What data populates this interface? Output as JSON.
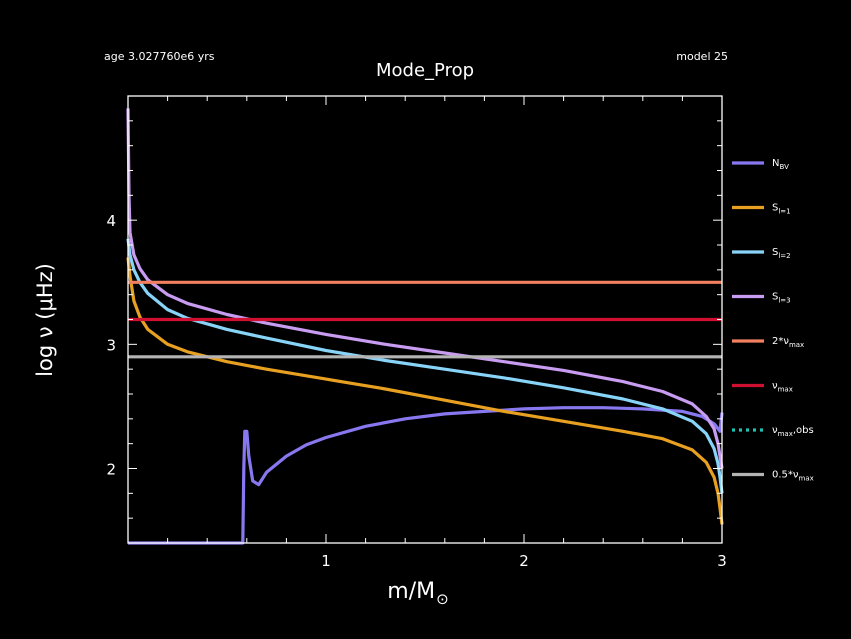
{
  "header": {
    "age": "age 3.027760e6 yrs",
    "title": "Mode_Prop",
    "model": "model 25"
  },
  "chart_data": {
    "type": "line",
    "title": "Mode_Prop",
    "xlabel": "m/M",
    "xlabel_symbol": "⊙",
    "ylabel": "log ν (μHz)",
    "xlim": [
      0,
      3
    ],
    "ylim": [
      1.4,
      5.0
    ],
    "xticks": [
      1,
      2,
      3
    ],
    "yticks": [
      2,
      3,
      4
    ],
    "grid": false,
    "legend_position": "right",
    "series": [
      {
        "name": "N_BV",
        "label": "N",
        "sub": "BV",
        "color": "#8878f0",
        "x": [
          0,
          0.58,
          0.585,
          0.59,
          0.6,
          0.61,
          0.63,
          0.66,
          0.7,
          0.8,
          0.9,
          1.0,
          1.2,
          1.4,
          1.6,
          1.8,
          2.0,
          2.2,
          2.4,
          2.6,
          2.8,
          2.9,
          2.96,
          2.99,
          3.0
        ],
        "y": [
          1.4,
          1.4,
          2.0,
          2.3,
          2.3,
          2.1,
          1.9,
          1.87,
          1.97,
          2.1,
          2.19,
          2.25,
          2.34,
          2.4,
          2.44,
          2.46,
          2.48,
          2.49,
          2.49,
          2.48,
          2.46,
          2.42,
          2.36,
          2.3,
          2.45
        ]
      },
      {
        "name": "S_l=1",
        "label": "S",
        "sub": "l=1",
        "color": "#e8a020",
        "x": [
          0,
          0.01,
          0.03,
          0.06,
          0.1,
          0.2,
          0.3,
          0.5,
          0.7,
          1.0,
          1.3,
          1.6,
          1.9,
          2.2,
          2.5,
          2.7,
          2.85,
          2.92,
          2.96,
          2.98,
          2.99,
          3.0
        ],
        "y": [
          3.7,
          3.55,
          3.35,
          3.22,
          3.12,
          3.0,
          2.94,
          2.86,
          2.8,
          2.72,
          2.64,
          2.55,
          2.46,
          2.38,
          2.3,
          2.24,
          2.15,
          2.05,
          1.93,
          1.8,
          1.68,
          1.55
        ]
      },
      {
        "name": "S_l=2",
        "label": "S",
        "sub": "l=2",
        "color": "#88d4f8",
        "x": [
          0,
          0.01,
          0.03,
          0.06,
          0.1,
          0.2,
          0.3,
          0.5,
          0.7,
          1.0,
          1.3,
          1.6,
          1.9,
          2.2,
          2.5,
          2.7,
          2.85,
          2.92,
          2.96,
          2.98,
          2.99,
          3.0
        ],
        "y": [
          3.85,
          3.72,
          3.6,
          3.5,
          3.41,
          3.28,
          3.21,
          3.12,
          3.05,
          2.95,
          2.87,
          2.8,
          2.73,
          2.65,
          2.56,
          2.48,
          2.38,
          2.28,
          2.16,
          2.04,
          1.93,
          1.8
        ]
      },
      {
        "name": "S_l=3",
        "label": "S",
        "sub": "l=3",
        "color": "#c89cf0",
        "x": [
          0,
          0.005,
          0.01,
          0.03,
          0.06,
          0.1,
          0.2,
          0.3,
          0.5,
          0.7,
          1.0,
          1.3,
          1.6,
          1.9,
          2.2,
          2.5,
          2.7,
          2.85,
          2.92,
          2.96,
          2.98,
          2.99,
          3.0
        ],
        "y": [
          4.9,
          4.2,
          3.9,
          3.72,
          3.61,
          3.52,
          3.4,
          3.33,
          3.24,
          3.17,
          3.08,
          3.0,
          2.93,
          2.86,
          2.79,
          2.7,
          2.62,
          2.52,
          2.42,
          2.32,
          2.2,
          2.1,
          2.0
        ]
      },
      {
        "name": "2*nu_max",
        "label": "2*ν",
        "sub": "max",
        "color": "#f08060",
        "x": [
          0,
          3
        ],
        "y": [
          3.5,
          3.5
        ]
      },
      {
        "name": "nu_max",
        "label": "ν",
        "sub": "max",
        "color": "#d01030",
        "x": [
          0,
          3
        ],
        "y": [
          3.2,
          3.2
        ]
      },
      {
        "name": "nu_max,obs",
        "label": "ν",
        "sub": "max",
        "suffix": ",obs",
        "color": "#20c0b0",
        "dashed": true,
        "x": [],
        "y": []
      },
      {
        "name": "0.5*nu_max",
        "label": "0.5*ν",
        "sub": "max",
        "color": "#b4b4b4",
        "x": [
          0,
          3
        ],
        "y": [
          2.9,
          2.9
        ]
      }
    ]
  }
}
